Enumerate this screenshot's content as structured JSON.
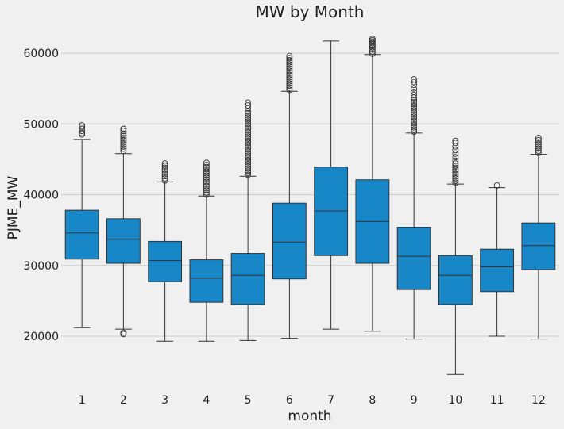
{
  "chart_data": {
    "type": "boxplot",
    "title": "MW by Month",
    "xlabel": "month",
    "ylabel": "PJME_MW",
    "ylim": [
      12500,
      64000
    ],
    "yticks": [
      20000,
      30000,
      40000,
      50000,
      60000
    ],
    "ytick_labels": [
      "20000",
      "30000",
      "40000",
      "50000",
      "60000"
    ],
    "grid": "horizontal",
    "categories": [
      "1",
      "2",
      "3",
      "4",
      "5",
      "6",
      "7",
      "8",
      "9",
      "10",
      "11",
      "12"
    ],
    "color": "#1787c8",
    "boxes": [
      {
        "month": "1",
        "whislo": 21200,
        "q1": 30900,
        "med": 34600,
        "q3": 37800,
        "whishi": 47800,
        "fliers": [
          48500,
          48700,
          49000,
          49300,
          49600,
          49800
        ]
      },
      {
        "month": "2",
        "whislo": 21000,
        "q1": 30300,
        "med": 33700,
        "q3": 36600,
        "whishi": 45800,
        "fliers": [
          20300,
          20500,
          46200,
          46500,
          46800,
          47100,
          47400,
          47700,
          48000,
          48300,
          48600,
          49000,
          49300
        ]
      },
      {
        "month": "3",
        "whislo": 19300,
        "q1": 27700,
        "med": 30700,
        "q3": 33400,
        "whishi": 41800,
        "fliers": [
          42000,
          42300,
          42600,
          42900,
          43200,
          43500,
          43800,
          44100,
          44400
        ]
      },
      {
        "month": "4",
        "whislo": 19300,
        "q1": 24800,
        "med": 28200,
        "q3": 30800,
        "whishi": 39800,
        "fliers": [
          40000,
          40300,
          40600,
          40900,
          41200,
          41500,
          41800,
          42100,
          42400,
          42700,
          43000,
          43300,
          43600,
          43900,
          44200,
          44500
        ]
      },
      {
        "month": "5",
        "whislo": 19400,
        "q1": 24500,
        "med": 28600,
        "q3": 31700,
        "whishi": 42600,
        "fliers": [
          42800,
          43100,
          43400,
          43700,
          44000,
          44300,
          44600,
          44900,
          45200,
          45500,
          45800,
          46100,
          46400,
          46700,
          47000,
          47300,
          47600,
          47900,
          48200,
          48500,
          48800,
          49100,
          49400,
          49700,
          50000,
          50300,
          50600,
          50900,
          51200,
          51500,
          51800,
          52200,
          52600,
          53000
        ]
      },
      {
        "month": "6",
        "whislo": 19700,
        "q1": 28100,
        "med": 33300,
        "q3": 38800,
        "whishi": 54600,
        "fliers": [
          54800,
          55100,
          55400,
          55700,
          56000,
          56300,
          56600,
          56900,
          57200,
          57500,
          57800,
          58100,
          58400,
          58700,
          59000,
          59300,
          59600
        ]
      },
      {
        "month": "7",
        "whislo": 21000,
        "q1": 31400,
        "med": 37700,
        "q3": 43900,
        "whishi": 61700,
        "fliers": []
      },
      {
        "month": "8",
        "whislo": 20700,
        "q1": 30300,
        "med": 36200,
        "q3": 42100,
        "whishi": 59800,
        "fliers": [
          59900,
          60200,
          60500,
          60800,
          61000,
          61200,
          61400,
          61600,
          61800,
          62000
        ]
      },
      {
        "month": "9",
        "whislo": 19600,
        "q1": 26600,
        "med": 31300,
        "q3": 35400,
        "whishi": 48700,
        "fliers": [
          48900,
          49200,
          49500,
          49800,
          50100,
          50400,
          50700,
          51000,
          51300,
          51600,
          51900,
          52200,
          52500,
          52800,
          53100,
          53400,
          53700,
          54100,
          54500,
          55000,
          55500,
          55900,
          56300
        ]
      },
      {
        "month": "10",
        "whislo": 14600,
        "q1": 24500,
        "med": 28600,
        "q3": 31400,
        "whishi": 41500,
        "fliers": [
          41700,
          42000,
          42300,
          42600,
          42900,
          43200,
          43500,
          43800,
          44100,
          44400,
          44800,
          45300,
          45800,
          46300,
          46800,
          47300,
          47600
        ]
      },
      {
        "month": "11",
        "whislo": 20000,
        "q1": 26300,
        "med": 29800,
        "q3": 32300,
        "whishi": 41000,
        "fliers": [
          41300
        ]
      },
      {
        "month": "12",
        "whislo": 19600,
        "q1": 29400,
        "med": 32800,
        "q3": 36000,
        "whishi": 45700,
        "fliers": [
          45900,
          46200,
          46500,
          46800,
          47100,
          47400,
          47700,
          48000
        ]
      }
    ]
  }
}
